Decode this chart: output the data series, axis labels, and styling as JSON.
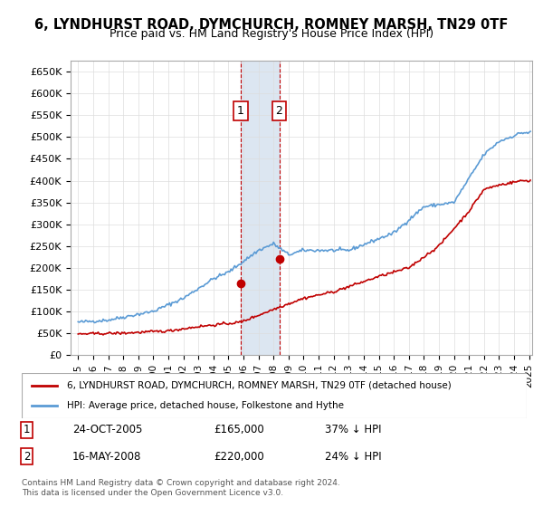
{
  "title": "6, LYNDHURST ROAD, DYMCHURCH, ROMNEY MARSH, TN29 0TF",
  "subtitle": "Price paid vs. HM Land Registry's House Price Index (HPI)",
  "hpi_color": "#5b9bd5",
  "price_color": "#c00000",
  "highlight_color": "#dce6f1",
  "ylabel": "",
  "xlabel": "",
  "ylim": [
    0,
    675000
  ],
  "yticks": [
    0,
    50000,
    100000,
    150000,
    200000,
    250000,
    300000,
    350000,
    400000,
    450000,
    500000,
    550000,
    600000,
    650000
  ],
  "ytick_labels": [
    "£0",
    "£50K",
    "£100K",
    "£150K",
    "£200K",
    "£250K",
    "£300K",
    "£350K",
    "£400K",
    "£450K",
    "£500K",
    "£550K",
    "£600K",
    "£650K"
  ],
  "sale1_date": "24-OCT-2005",
  "sale1_price": 165000,
  "sale1_pct": "37%",
  "sale2_date": "16-MAY-2008",
  "sale2_price": 220000,
  "sale2_pct": "24%",
  "legend_line1": "6, LYNDHURST ROAD, DYMCHURCH, ROMNEY MARSH, TN29 0TF (detached house)",
  "legend_line2": "HPI: Average price, detached house, Folkestone and Hythe",
  "footnote": "Contains HM Land Registry data © Crown copyright and database right 2024.\nThis data is licensed under the Open Government Licence v3.0.",
  "x_start_year": 1995,
  "x_end_year": 2025
}
